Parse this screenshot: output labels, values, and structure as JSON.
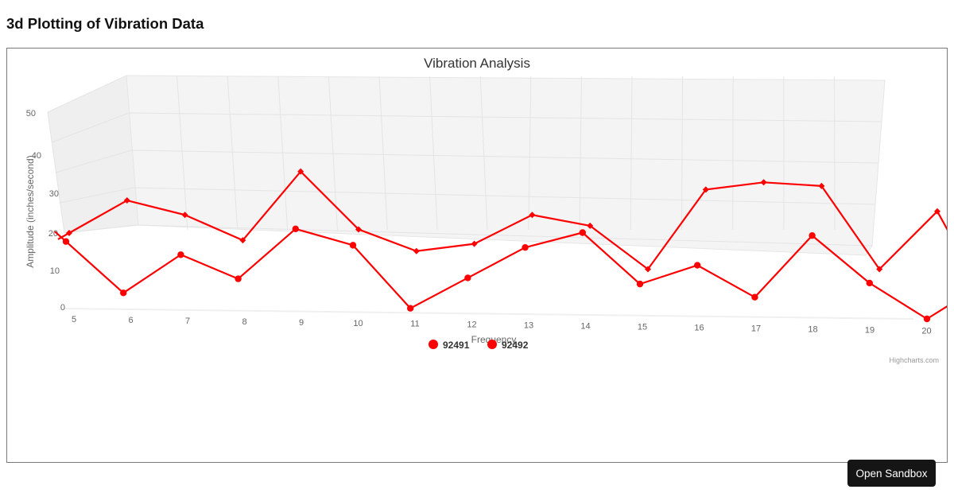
{
  "page": {
    "title": "3d Plotting of Vibration Data"
  },
  "chart_data": {
    "type": "line",
    "subtype": "3d",
    "title": "Vibration Analysis",
    "xlabel": "Frequency",
    "ylabel": "Amplitude (inches/second)",
    "x": [
      5,
      6,
      7,
      8,
      9,
      10,
      11,
      12,
      13,
      14,
      15,
      16,
      17,
      18,
      19,
      20
    ],
    "y_ticks": [
      0,
      10,
      20,
      30,
      40,
      50
    ],
    "ylim": [
      0,
      50
    ],
    "grid": true,
    "legend_position": "bottom",
    "series": [
      {
        "name": "92491",
        "color": "#ff0000",
        "marker": "circle",
        "values": [
          17,
          4,
          14,
          8,
          21,
          17,
          1,
          9,
          17,
          21,
          8,
          13,
          5,
          21,
          9,
          0
        ]
      },
      {
        "name": "92492",
        "color": "#ff0000",
        "marker": "diamond",
        "values": [
          20,
          29,
          25,
          18,
          37,
          21,
          15,
          17,
          25,
          22,
          10,
          32,
          34,
          33,
          10,
          26
        ]
      }
    ],
    "credits": "Highcharts.com"
  },
  "buttons": {
    "open_sandbox": "Open Sandbox"
  }
}
